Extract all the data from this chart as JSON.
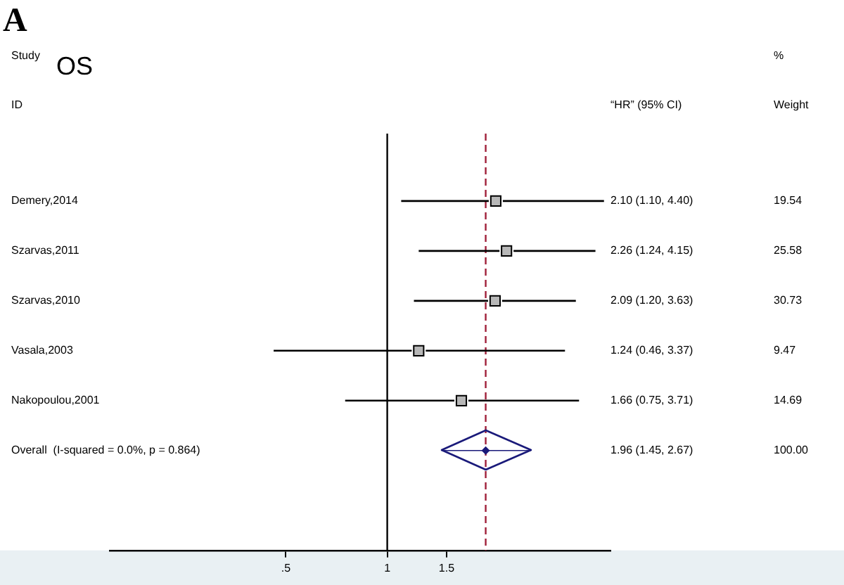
{
  "chart_data": {
    "type": "scatter",
    "orientation": "horizontal",
    "title": "OS",
    "annotations": [
      "A",
      "Study",
      "ID",
      "“HR” (95% CI)",
      "%",
      "Weight",
      "1.96 (1.45, 2.67)",
      "19.54",
      "25.58",
      "30.73",
      "9.47",
      "14.69",
      "100.00"
    ],
    "categories": [
      "Demery,2014",
      "Szarvas,2011",
      "Szarvas,2010",
      "Vasala,2003",
      "Nakopoulou,2001",
      "Overall  (I-squared = 0.0%, p = 0.864)"
    ],
    "series": [
      {
        "color": "#000000",
        "marker": "square",
        "values": [
          2.1,
          2.26,
          2.09,
          1.24,
          1.66,
          null
        ],
        "errors": [
          [
            1.1,
            4.4
          ],
          [
            1.24,
            4.15
          ],
          [
            1.2,
            3.63
          ],
          [
            0.46,
            3.37
          ],
          [
            0.75,
            3.71
          ],
          null
        ],
        "value_labels": [
          "2.10 (1.10, 4.40)",
          "2.26 (1.24, 4.15)",
          "2.09 (1.20, 3.63)",
          "1.24 (0.46, 3.37)",
          "1.66 (0.75, 3.71)",
          null
        ]
      },
      {
        "color": "#1a1a7a",
        "marker": "diamond",
        "values": [
          null,
          null,
          null,
          null,
          null,
          1.96
        ],
        "errors": [
          null,
          null,
          null,
          null,
          null,
          [
            1.45,
            2.67
          ]
        ]
      }
    ],
    "log": "x",
    "xlim": [
      0.15,
      4.6
    ],
    "xticks": [
      {
        "value": 0.5,
        "label": ".5"
      },
      1,
      1.5
    ],
    "grid": false,
    "legend": false,
    "ref_lines": [
      {
        "axis": "x",
        "value": 1,
        "color": "#000000",
        "line_style": "solid"
      },
      {
        "axis": "x",
        "value": 1.96,
        "color": "#a0203a",
        "line_style": "dashed"
      }
    ]
  }
}
